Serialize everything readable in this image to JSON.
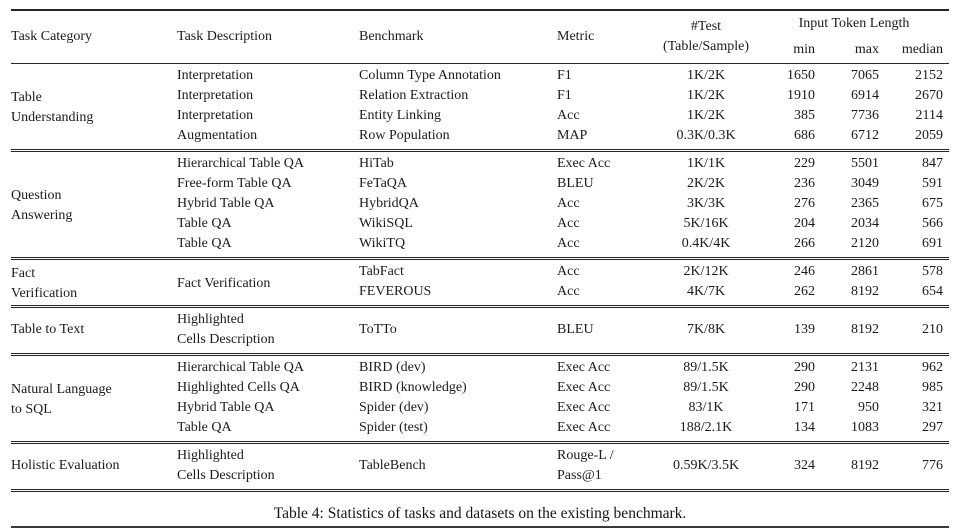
{
  "caption": "Table 4: Statistics of tasks and datasets on the existing benchmark.",
  "colors": {
    "text": "#1b1b1b",
    "rule": "#262626",
    "background": "#ffffff"
  },
  "table": {
    "headers": {
      "task_category": "Task Category",
      "task_description": "Task Description",
      "benchmark": "Benchmark",
      "metric": "Metric",
      "test_line1": "#Test",
      "test_line2": "(Table/Sample)",
      "input_token_length": "Input Token Length",
      "min": "min",
      "max": "max",
      "median": "median"
    },
    "sections": [
      {
        "category": "Table\nUnderstanding",
        "rows": [
          {
            "description": "Interpretation",
            "benchmark": "Column Type Annotation",
            "metric": "F1",
            "test": "1K/2K",
            "min": "1650",
            "max": "7065",
            "median": "2152"
          },
          {
            "description": "Interpretation",
            "benchmark": "Relation Extraction",
            "metric": "F1",
            "test": "1K/2K",
            "min": "1910",
            "max": "6914",
            "median": "2670"
          },
          {
            "description": "Interpretation",
            "benchmark": "Entity Linking",
            "metric": "Acc",
            "test": "1K/2K",
            "min": "385",
            "max": "7736",
            "median": "2114"
          },
          {
            "description": "Augmentation",
            "benchmark": "Row Population",
            "metric": "MAP",
            "test": "0.3K/0.3K",
            "min": "686",
            "max": "6712",
            "median": "2059"
          }
        ]
      },
      {
        "category": "Question\nAnswering",
        "rows": [
          {
            "description": "Hierarchical Table QA",
            "benchmark": "HiTab",
            "metric": "Exec Acc",
            "test": "1K/1K",
            "min": "229",
            "max": "5501",
            "median": "847"
          },
          {
            "description": "Free-form Table QA",
            "benchmark": "FeTaQA",
            "metric": "BLEU",
            "test": "2K/2K",
            "min": "236",
            "max": "3049",
            "median": "591"
          },
          {
            "description": "Hybrid Table QA",
            "benchmark": "HybridQA",
            "metric": "Acc",
            "test": "3K/3K",
            "min": "276",
            "max": "2365",
            "median": "675"
          },
          {
            "description": "Table QA",
            "benchmark": "WikiSQL",
            "metric": "Acc",
            "test": "5K/16K",
            "min": "204",
            "max": "2034",
            "median": "566"
          },
          {
            "description": "Table QA",
            "benchmark": "WikiTQ",
            "metric": "Acc",
            "test": "0.4K/4K",
            "min": "266",
            "max": "2120",
            "median": "691"
          }
        ]
      },
      {
        "category": "Fact\nVerification",
        "merged_description": "Fact Verification",
        "rows": [
          {
            "benchmark": "TabFact",
            "metric": "Acc",
            "test": "2K/12K",
            "min": "246",
            "max": "2861",
            "median": "578"
          },
          {
            "benchmark": "FEVEROUS",
            "metric": "Acc",
            "test": "4K/7K",
            "min": "262",
            "max": "8192",
            "median": "654"
          }
        ]
      },
      {
        "category": "Table to Text",
        "rows": [
          {
            "description": "Highlighted\nCells Description",
            "benchmark": "ToTTo",
            "metric": "BLEU",
            "test": "7K/8K",
            "min": "139",
            "max": "8192",
            "median": "210"
          }
        ]
      },
      {
        "category": "Natural Language\nto SQL",
        "rows": [
          {
            "description": "Hierarchical Table QA",
            "benchmark": "BIRD (dev)",
            "metric": "Exec Acc",
            "test": "89/1.5K",
            "min": "290",
            "max": "2131",
            "median": "962"
          },
          {
            "description": "Highlighted Cells QA",
            "benchmark": "BIRD (knowledge)",
            "metric": "Exec Acc",
            "test": "89/1.5K",
            "min": "290",
            "max": "2248",
            "median": "985"
          },
          {
            "description": "Hybrid Table QA",
            "benchmark": "Spider (dev)",
            "metric": "Exec Acc",
            "test": "83/1K",
            "min": "171",
            "max": "950",
            "median": "321"
          },
          {
            "description": "Table QA",
            "benchmark": "Spider (test)",
            "metric": "Exec Acc",
            "test": "188/2.1K",
            "min": "134",
            "max": "1083",
            "median": "297"
          }
        ]
      },
      {
        "category": "Holistic Evaluation",
        "rows": [
          {
            "description": "Highlighted\nCells Description",
            "benchmark": "TableBench",
            "metric": "Rouge-L /\nPass@1",
            "test": "0.59K/3.5K",
            "min": "324",
            "max": "8192",
            "median": "776"
          }
        ]
      }
    ]
  }
}
